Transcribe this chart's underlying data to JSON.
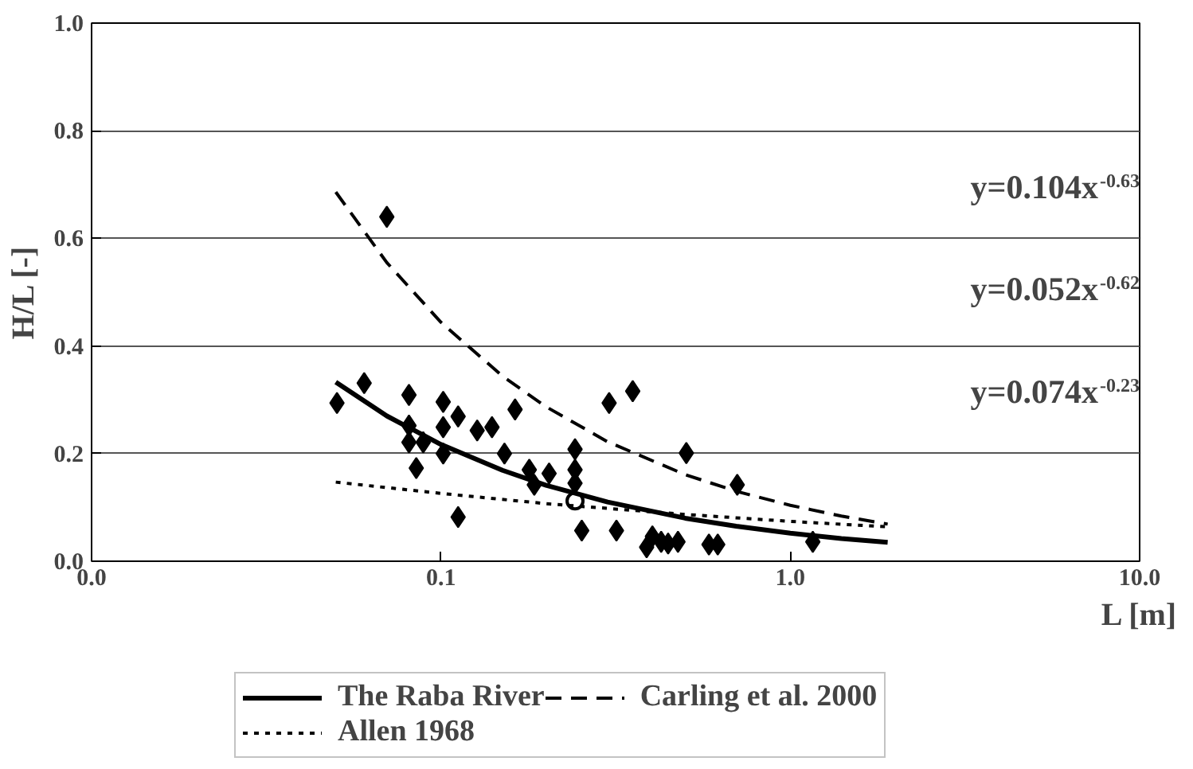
{
  "chart_data": {
    "type": "scatter",
    "xlabel": "L [m]",
    "ylabel": "H/L [-]",
    "log": "x",
    "xlim": [
      0.01,
      10
    ],
    "ylim": [
      0,
      1.0
    ],
    "xticks": [
      {
        "value": 0.01,
        "label": "0.0"
      },
      {
        "value": 0.1,
        "label": "0.1"
      },
      {
        "value": 1,
        "label": "1.0"
      },
      {
        "value": 10,
        "label": "10.0"
      }
    ],
    "yticks": [
      {
        "value": 0,
        "label": "0.0"
      },
      {
        "value": 0.2,
        "label": "0.2"
      },
      {
        "value": 0.4,
        "label": "0.4"
      },
      {
        "value": 0.6,
        "label": "0.6"
      },
      {
        "value": 0.8,
        "label": "0.8"
      },
      {
        "value": 1.0,
        "label": "1.0"
      }
    ],
    "grid": "y",
    "legend": "bottom",
    "annotations": [
      "y=0.104x$^{-0.63}$",
      "y=0.052x$^{-0.62}$",
      "y=0.074x$^{-0.23}$"
    ],
    "series": [
      {
        "marker": "diamond",
        "color": "#000000",
        "x": [
          0.0504,
          0.0603,
          0.07,
          0.081,
          0.081,
          0.081,
          0.089,
          0.085,
          0.1015,
          0.112,
          0.1015,
          0.1015,
          0.112,
          0.127,
          0.14,
          0.163,
          0.152,
          0.179,
          0.204,
          0.185,
          0.242,
          0.242,
          0.242,
          0.253,
          0.303,
          0.354,
          0.318,
          0.388,
          0.403,
          0.447,
          0.504,
          0.705,
          0.427,
          0.477,
          0.585,
          0.62,
          1.16
        ],
        "values": [
          0.294,
          0.331,
          0.64,
          0.309,
          0.252,
          0.221,
          0.221,
          0.173,
          0.296,
          0.269,
          0.249,
          0.2,
          0.082,
          0.243,
          0.249,
          0.282,
          0.2,
          0.17,
          0.163,
          0.142,
          0.208,
          0.17,
          0.145,
          0.057,
          0.294,
          0.316,
          0.057,
          0.026,
          0.046,
          0.033,
          0.201,
          0.142,
          0.036,
          0.036,
          0.031,
          0.031,
          0.036
        ]
      },
      {
        "marker": "circle",
        "color": "#000000",
        "x": [
          0.242
        ],
        "values": [
          0.112
        ]
      },
      {
        "type": "line",
        "name": "The Raba River",
        "line_style": "solid",
        "color": "#000000",
        "x": [
          0.05,
          0.07,
          0.1,
          0.15,
          0.2,
          0.3,
          0.5,
          0.7,
          1.0,
          1.4,
          1.9
        ],
        "values": [
          0.333,
          0.27,
          0.217,
          0.169,
          0.141,
          0.11,
          0.08,
          0.065,
          0.052,
          0.042,
          0.035
        ]
      },
      {
        "type": "line",
        "name": "Allen 1968",
        "line_style": "dotted",
        "color": "#000000",
        "x": [
          0.05,
          0.1,
          0.2,
          0.5,
          1.0,
          1.9
        ],
        "values": [
          0.147,
          0.126,
          0.107,
          0.087,
          0.074,
          0.064
        ]
      },
      {
        "type": "line",
        "name": "Carling et al. 2000",
        "line_style": "dashed",
        "color": "#000000",
        "x": [
          0.05,
          0.07,
          0.1,
          0.15,
          0.2,
          0.3,
          0.5,
          0.7,
          1.0,
          1.4,
          1.9
        ],
        "values": [
          0.686,
          0.555,
          0.444,
          0.344,
          0.287,
          0.222,
          0.161,
          0.13,
          0.104,
          0.084,
          0.069
        ]
      }
    ]
  }
}
